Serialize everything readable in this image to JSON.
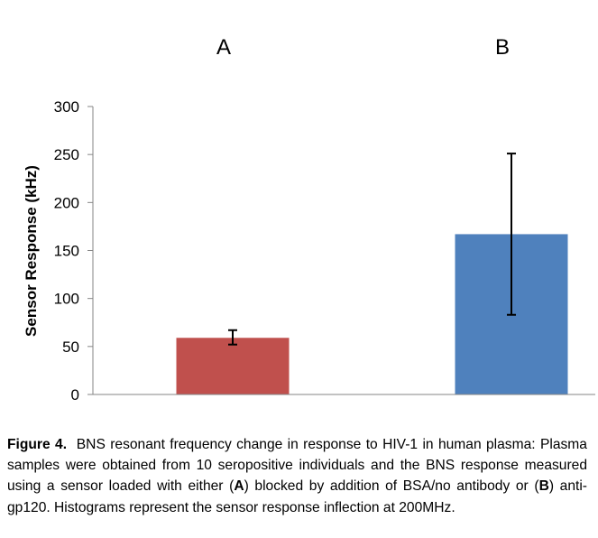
{
  "chart_data": {
    "type": "bar",
    "categories": [
      "A",
      "B"
    ],
    "values": [
      59,
      167
    ],
    "error": [
      {
        "low": 52,
        "high": 67
      },
      {
        "low": 83,
        "high": 251
      }
    ],
    "colors": [
      "#C0504D",
      "#4F81BD"
    ],
    "title": "",
    "xlabel": "",
    "ylabel": "Sensor Response (kHz)",
    "ylim": [
      0,
      300
    ],
    "yticks": [
      0,
      50,
      100,
      150,
      200,
      250,
      300
    ],
    "grid": false,
    "legend": "none"
  },
  "caption": {
    "label": "Figure 4.",
    "part1": "BNS resonant frequency change in response to HIV-1 in human plasma: Plasma samples were obtained from 10 seropositive individuals and the BNS response measured using a sensor loaded with either (",
    "marker_a": "A",
    "part2": ") blocked by addition of BSA/no antibody or (",
    "marker_b": "B",
    "part3": ") anti-gp120. Histograms represent the sensor response inflection at 200MHz."
  }
}
